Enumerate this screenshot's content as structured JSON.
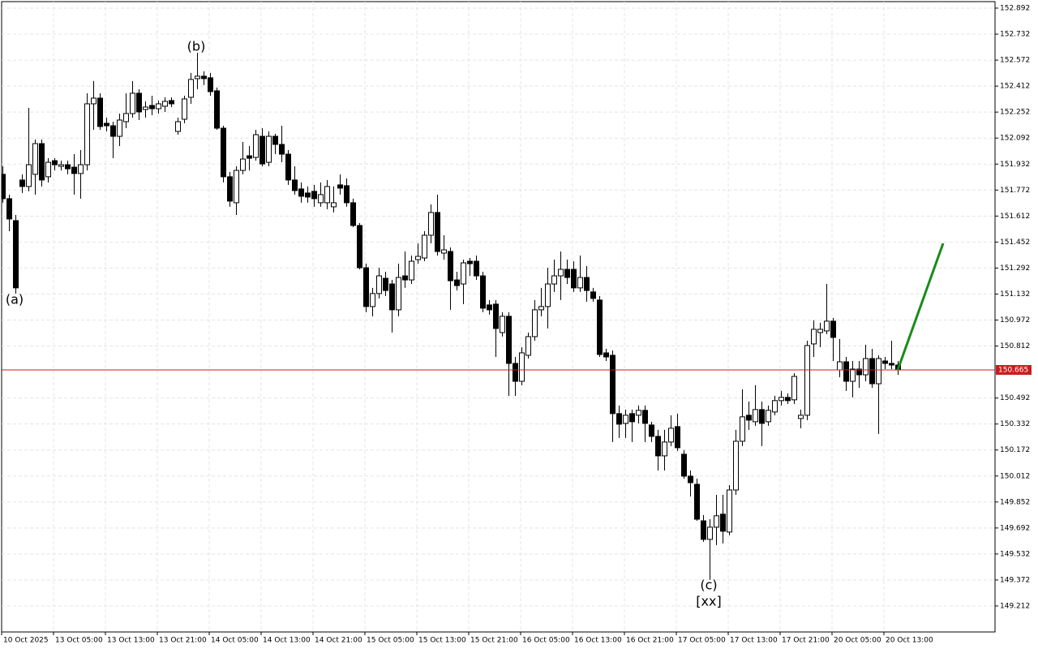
{
  "chart_data": {
    "type": "candlestick",
    "annotations": [
      {
        "text": "(a)",
        "color": "#2424d8"
      },
      {
        "text": "(b)",
        "color": "#2424d8"
      },
      {
        "text": "(c)",
        "color": "#2424d8"
      },
      {
        "text": "[xx]",
        "color": "#4fc94f"
      }
    ],
    "categories": [
      "10 Oct 2025",
      null,
      null,
      null,
      null,
      null,
      null,
      null,
      "13 Oct 05:00",
      null,
      null,
      null,
      null,
      null,
      null,
      null,
      "13 Oct 13:00",
      null,
      null,
      null,
      null,
      null,
      null,
      null,
      "13 Oct 21:00",
      null,
      null,
      null,
      null,
      null,
      null,
      null,
      "14 Oct 05:00",
      null,
      null,
      null,
      null,
      null,
      null,
      null,
      "14 Oct 13:00",
      null,
      null,
      null,
      null,
      null,
      null,
      null,
      "14 Oct 21:00",
      null,
      null,
      null,
      null,
      null,
      null,
      null,
      "15 Oct 05:00",
      null,
      null,
      null,
      null,
      null,
      null,
      null,
      "15 Oct 13:00",
      null,
      null,
      null,
      null,
      null,
      null,
      null,
      "15 Oct 21:00",
      null,
      null,
      null,
      null,
      null,
      null,
      null,
      "16 Oct 05:00",
      null,
      null,
      null,
      null,
      null,
      null,
      null,
      "16 Oct 13:00",
      null,
      null,
      null,
      null,
      null,
      null,
      null,
      "16 Oct 21:00",
      null,
      null,
      null,
      null,
      null,
      null,
      null,
      "17 Oct 05:00",
      null,
      null,
      null,
      null,
      null,
      null,
      null,
      "17 Oct 13:00",
      null,
      null,
      null,
      null,
      null,
      null,
      null,
      "17 Oct 21:00",
      null,
      null,
      null,
      null,
      null,
      null,
      null,
      "20 Oct 05:00",
      null,
      null,
      null,
      null,
      null,
      null,
      null,
      "20 Oct 13:00",
      null,
      null
    ],
    "open": [
      151.869,
      151.719,
      151.584,
      151.834,
      151.794,
      151.869,
      152.058,
      151.854,
      151.953,
      151.918,
      151.928,
      151.913,
      151.874,
      151.928,
      152.303,
      152.338,
      152.183,
      152.168,
      152.103,
      152.193,
      152.243,
      152.368,
      152.268,
      152.293,
      152.273,
      152.288,
      152.323,
      152.133,
      152.208,
      152.343,
      152.458,
      152.473,
      152.463,
      152.383,
      152.153,
      151.854,
      151.694,
      151.893,
      151.983,
      151.973,
      152.103,
      151.943,
      152.103,
      152.053,
      151.993,
      151.834,
      151.779,
      151.754,
      151.764,
      151.694,
      151.694,
      151.669,
      151.804,
      151.799,
      151.694,
      151.554,
      151.294,
      151.055,
      151.135,
      151.229,
      151.194,
      151.035,
      151.244,
      151.219,
      151.344,
      151.354,
      151.494,
      151.634,
      151.384,
      151.394,
      151.219,
      151.194,
      151.334,
      151.334,
      151.244,
      151.065,
      151.07,
      150.895,
      150.995,
      150.705,
      150.595,
      150.755,
      150.87,
      151.035,
      151.055,
      151.194,
      151.244,
      151.284,
      151.284,
      151.17,
      151.234,
      151.145,
      151.095,
      150.77,
      150.755,
      150.396,
      150.336,
      150.396,
      150.386,
      150.416,
      150.326,
      150.256,
      150.136,
      150.221,
      150.316,
      150.146,
      150.011,
      149.961,
      149.736,
      149.622,
      149.697,
      149.777,
      149.667,
      149.926,
      150.226,
      150.386,
      150.346,
      150.421,
      150.346,
      150.406,
      150.476,
      150.496,
      150.481,
      150.366,
      150.386,
      150.825,
      150.895,
      150.905,
      150.965,
      150.665,
      150.715,
      150.595,
      150.67,
      150.635,
      150.735,
      150.58,
      150.72,
      150.705,
      150.695
    ],
    "high": [
      151.918,
      151.744,
      151.619,
      151.869,
      152.278,
      152.083,
      152.083,
      151.968,
      151.968,
      151.953,
      151.953,
      151.993,
      152.018,
      152.368,
      152.443,
      152.368,
      152.218,
      152.193,
      152.243,
      152.368,
      152.443,
      152.393,
      152.318,
      152.353,
      152.323,
      152.343,
      152.343,
      152.218,
      152.353,
      152.493,
      152.617,
      152.503,
      152.493,
      152.403,
      152.168,
      151.884,
      151.918,
      152.068,
      152.043,
      152.143,
      152.153,
      152.133,
      152.118,
      152.168,
      152.018,
      151.918,
      151.819,
      151.794,
      151.804,
      151.819,
      151.834,
      151.794,
      151.869,
      151.844,
      151.719,
      151.569,
      151.319,
      151.17,
      151.294,
      151.269,
      151.219,
      151.319,
      151.394,
      151.369,
      151.444,
      151.519,
      151.684,
      151.744,
      151.494,
      151.419,
      151.269,
      151.344,
      151.354,
      151.369,
      151.269,
      151.095,
      151.095,
      151.02,
      151.02,
      150.745,
      150.805,
      150.895,
      151.095,
      151.17,
      151.294,
      151.344,
      151.394,
      151.344,
      151.334,
      151.369,
      151.304,
      151.17,
      151.12,
      150.795,
      150.785,
      150.446,
      150.421,
      150.421,
      150.446,
      150.446,
      150.346,
      150.296,
      150.296,
      150.386,
      150.396,
      150.171,
      150.046,
      149.996,
      149.772,
      149.746,
      149.896,
      149.896,
      149.956,
      150.296,
      150.546,
      150.471,
      150.571,
      150.471,
      150.446,
      150.506,
      150.536,
      150.521,
      150.645,
      150.421,
      150.845,
      150.97,
      150.955,
      151.194,
      150.985,
      150.855,
      150.745,
      150.72,
      150.72,
      150.82,
      150.795,
      150.755,
      150.745,
      150.845,
      150.72
    ],
    "low": [
      151.694,
      151.519,
      151.135,
      151.754,
      151.764,
      151.744,
      151.794,
      151.819,
      151.893,
      151.893,
      151.869,
      151.744,
      151.719,
      151.893,
      152.143,
      152.143,
      152.133,
      151.968,
      152.043,
      152.153,
      152.218,
      152.203,
      152.218,
      152.233,
      152.243,
      152.253,
      152.283,
      152.113,
      152.183,
      152.303,
      152.393,
      152.418,
      152.353,
      152.143,
      151.819,
      151.669,
      151.619,
      151.869,
      151.893,
      151.953,
      151.918,
      151.918,
      151.993,
      151.943,
      151.804,
      151.744,
      151.694,
      151.694,
      151.669,
      151.669,
      151.654,
      151.634,
      151.744,
      151.669,
      151.544,
      151.284,
      151.02,
      150.995,
      151.105,
      151.12,
      150.895,
      150.995,
      151.17,
      151.194,
      151.319,
      151.334,
      151.444,
      151.369,
      151.344,
      151.035,
      151.154,
      151.07,
      151.244,
      151.219,
      151.02,
      151.005,
      150.745,
      150.87,
      150.505,
      150.505,
      150.57,
      150.735,
      150.845,
      150.995,
      150.92,
      151.145,
      151.095,
      151.194,
      151.145,
      151.145,
      151.085,
      151.085,
      150.745,
      150.72,
      150.221,
      150.246,
      150.246,
      150.221,
      150.336,
      150.221,
      150.221,
      150.046,
      150.046,
      150.196,
      150.166,
      149.996,
      149.886,
      149.736,
      149.607,
      149.372,
      149.587,
      149.597,
      149.647,
      149.896,
      150.196,
      150.296,
      150.321,
      150.196,
      150.321,
      150.386,
      150.446,
      150.456,
      150.456,
      150.306,
      150.356,
      150.745,
      150.805,
      150.885,
      150.72,
      150.62,
      150.536,
      150.496,
      150.555,
      150.595,
      150.555,
      150.271,
      150.67,
      150.67,
      150.635
    ],
    "close": [
      151.719,
      151.594,
      151.17,
      151.794,
      151.928,
      152.058,
      151.834,
      151.943,
      151.928,
      151.928,
      151.903,
      151.874,
      151.928,
      152.303,
      152.338,
      152.163,
      152.168,
      152.103,
      152.203,
      152.243,
      152.368,
      152.253,
      152.283,
      152.273,
      152.303,
      152.318,
      152.303,
      152.193,
      152.333,
      152.453,
      152.473,
      152.458,
      152.378,
      152.153,
      151.854,
      151.704,
      151.893,
      151.963,
      151.968,
      152.113,
      151.933,
      152.103,
      152.053,
      151.993,
      151.834,
      151.769,
      151.734,
      151.729,
      151.719,
      151.744,
      151.794,
      151.694,
      151.784,
      151.694,
      151.554,
      151.294,
      151.055,
      151.135,
      151.244,
      151.154,
      151.035,
      151.234,
      151.219,
      151.334,
      151.364,
      151.494,
      151.634,
      151.394,
      151.404,
      151.214,
      151.184,
      151.324,
      151.319,
      151.244,
      151.045,
      151.035,
      150.92,
      150.995,
      150.705,
      150.595,
      150.77,
      150.87,
      151.035,
      151.055,
      151.194,
      151.244,
      151.284,
      151.234,
      151.17,
      151.234,
      151.154,
      151.105,
      150.76,
      150.745,
      150.396,
      150.331,
      150.386,
      150.346,
      150.416,
      150.336,
      150.256,
      150.136,
      150.221,
      150.306,
      150.186,
      150.011,
      149.971,
      149.746,
      149.622,
      149.697,
      149.767,
      149.672,
      149.926,
      150.226,
      150.376,
      150.356,
      150.421,
      150.336,
      150.416,
      150.476,
      150.496,
      150.476,
      150.625,
      150.386,
      150.815,
      150.915,
      150.915,
      150.965,
      150.865,
      150.715,
      150.595,
      150.67,
      150.635,
      150.735,
      150.58,
      150.735,
      150.705,
      150.695,
      150.665
    ],
    "up_color": "#ffffff",
    "down_color": "#000000",
    "current_price": {
      "value": 150.665,
      "color": "#c81e1e"
    },
    "projection": {
      "values": [
        150.665,
        151.444
      ],
      "color": "#1a8a1a"
    },
    "ylim": [
      149.052,
      152.932
    ],
    "yticks": [
      149.212,
      149.372,
      149.532,
      149.692,
      149.852,
      150.012,
      150.172,
      150.332,
      150.492,
      150.812,
      150.972,
      151.132,
      151.292,
      151.452,
      151.612,
      151.772,
      151.932,
      152.092,
      152.252,
      152.412,
      152.572,
      152.732,
      152.892
    ],
    "grid": true
  }
}
